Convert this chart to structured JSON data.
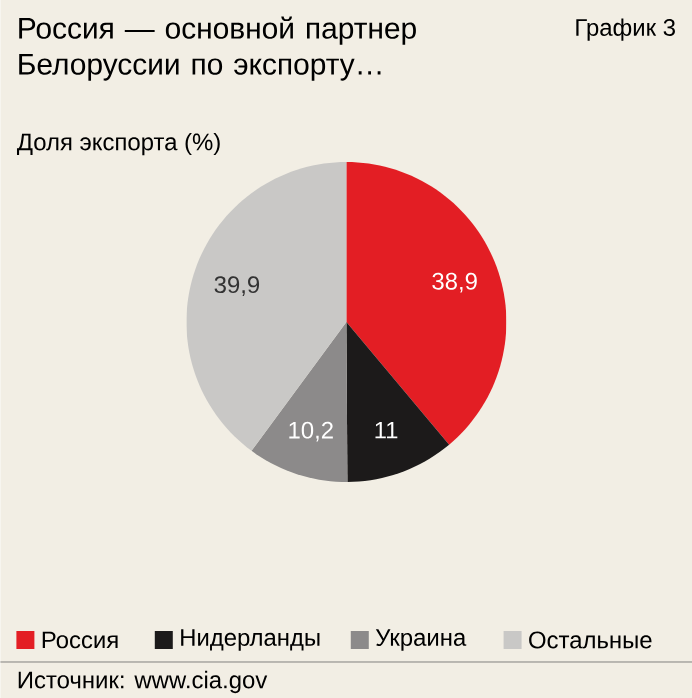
{
  "chart_data": {
    "type": "pie",
    "title": "Россия — основной партнер Белоруссии по экспорту…",
    "subtitle": "Доля экспорта (%)",
    "categories": [
      "Россия",
      "Нидерланды",
      "Украина",
      "Остальные"
    ],
    "values": [
      38.9,
      11,
      10.2,
      39.9
    ],
    "colors": [
      "#e31e24",
      "#1c1a1a",
      "#8c8a8a",
      "#c9c8c6"
    ],
    "data_labels": true,
    "value_labels": [
      "38,9",
      "11",
      "10,2",
      "39,9"
    ],
    "legend": "bottom",
    "annotations": [
      "График 3",
      "Источник: www.cia.gov"
    ]
  }
}
